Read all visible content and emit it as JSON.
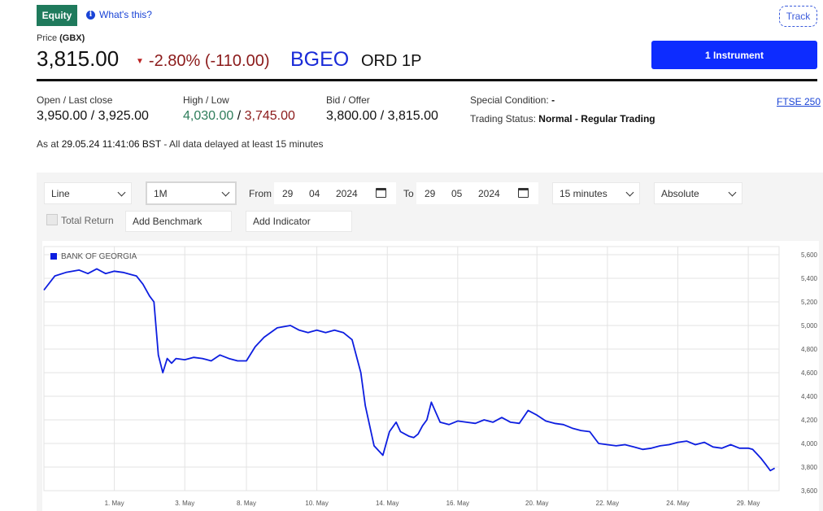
{
  "header": {
    "equity_label": "Equity",
    "whats_this": "What's this?",
    "track": "Track"
  },
  "price": {
    "label_prefix": "Price",
    "currency": "(GBX)",
    "value": "3,815.00",
    "change": "-2.80% (-110.00)",
    "ticker": "BGEO",
    "description": "ORD 1P",
    "instrument_button": "1 Instrument"
  },
  "stats": {
    "open_close_label": "Open / Last close",
    "open_close_value": "3,950.00 / 3,925.00",
    "high_low_label": "High / Low",
    "high": "4,030.00",
    "low": "3,745.00",
    "bid_offer_label": "Bid / Offer",
    "bid_offer_value": "3,800.00 / 3,815.00",
    "special_condition_label": "Special Condition:",
    "special_condition_value": "-",
    "trading_status_label": "Trading Status:",
    "trading_status_value": "Normal - Regular Trading",
    "index_link": "FTSE 250",
    "as_at_prefix": "As at",
    "as_at_timestamp": "29.05.24 11:41:06 BST",
    "as_at_suffix": "- All data delayed at least 15 minutes"
  },
  "controls": {
    "chart_type": "Line",
    "period": "1M",
    "from_label": "From",
    "from_day": "29",
    "from_month": "04",
    "from_year": "2024",
    "to_label": "To",
    "to_day": "29",
    "to_month": "05",
    "to_year": "2024",
    "interval": "15 minutes",
    "scale": "Absolute",
    "total_return": "Total Return",
    "add_benchmark": "Add Benchmark",
    "add_indicator": "Add Indicator"
  },
  "colors": {
    "accent_blue": "#0d2cff",
    "line_blue": "#0d1ee0",
    "equity_green": "#1f7a5c",
    "negative_red": "#8b1a1a"
  },
  "chart_data": {
    "type": "line",
    "series": [
      {
        "name": "BANK OF GEORGIA",
        "x": [
          0,
          0.25,
          0.5,
          0.8,
          1.0,
          1.2,
          1.4,
          1.6,
          1.8,
          2.0,
          2.1,
          2.25,
          2.4,
          2.5,
          2.6,
          2.7,
          2.8,
          2.9,
          3.0,
          3.2,
          3.4,
          3.6,
          3.8,
          4.0,
          4.2,
          4.4,
          4.6,
          4.8,
          5.0,
          5.3,
          5.6,
          5.8,
          6.0,
          6.2,
          6.4,
          6.6,
          6.8,
          7.0,
          7.2,
          7.3,
          7.5,
          7.7,
          7.85,
          8.0,
          8.1,
          8.2,
          8.3,
          8.4,
          8.5,
          8.6,
          8.7,
          8.8,
          9.0,
          9.2,
          9.4,
          9.6,
          9.8,
          10.0,
          10.2,
          10.4,
          10.6,
          10.8,
          11.0,
          11.2,
          11.4,
          11.6,
          11.8,
          12.0,
          12.2,
          12.4,
          12.6,
          12.8,
          13.0,
          13.2,
          13.4,
          13.6,
          13.8,
          14.0,
          14.2,
          14.4,
          14.6,
          14.8,
          15.0,
          15.2,
          15.4,
          15.6,
          15.8,
          16.0,
          16.1,
          16.2,
          16.3,
          16.4,
          16.5,
          16.6
        ],
        "y": [
          5300,
          5420,
          5450,
          5470,
          5440,
          5480,
          5440,
          5460,
          5450,
          5430,
          5420,
          5350,
          5250,
          5200,
          4750,
          4600,
          4720,
          4680,
          4720,
          4710,
          4730,
          4720,
          4700,
          4750,
          4720,
          4700,
          4700,
          4820,
          4900,
          4980,
          5000,
          4960,
          4940,
          4960,
          4940,
          4960,
          4940,
          4880,
          4600,
          4320,
          3980,
          3900,
          4100,
          4180,
          4100,
          4080,
          4060,
          4050,
          4080,
          4150,
          4200,
          4350,
          4180,
          4160,
          4190,
          4180,
          4170,
          4200,
          4180,
          4220,
          4180,
          4170,
          4280,
          4240,
          4190,
          4170,
          4160,
          4130,
          4110,
          4100,
          4000,
          3990,
          3980,
          3990,
          3970,
          3950,
          3960,
          3980,
          3990,
          4010,
          4020,
          3990,
          4010,
          3970,
          3960,
          3990,
          3960,
          3960,
          3950,
          3910,
          3870,
          3820,
          3770,
          3790
        ],
        "color": "#0d1ee0"
      }
    ],
    "x_ticks": [
      {
        "x": 1.6,
        "label": "1. May"
      },
      {
        "x": 3.2,
        "label": "3. May"
      },
      {
        "x": 4.6,
        "label": "8. May"
      },
      {
        "x": 6.2,
        "label": "10. May"
      },
      {
        "x": 7.8,
        "label": "14. May"
      },
      {
        "x": 9.4,
        "label": "16. May"
      },
      {
        "x": 11.2,
        "label": "20. May"
      },
      {
        "x": 12.8,
        "label": "22. May"
      },
      {
        "x": 14.4,
        "label": "24. May"
      },
      {
        "x": 16.0,
        "label": "29. May"
      }
    ],
    "y_ticks": [
      "5,600",
      "5,400",
      "5,200",
      "5,000",
      "4,800",
      "4,600",
      "4,400",
      "4,200",
      "4,000",
      "3,800",
      "3,600"
    ],
    "ylim": [
      3600,
      5600
    ],
    "xlim": [
      0,
      16.7
    ],
    "grid": true,
    "legend": "top-left"
  }
}
